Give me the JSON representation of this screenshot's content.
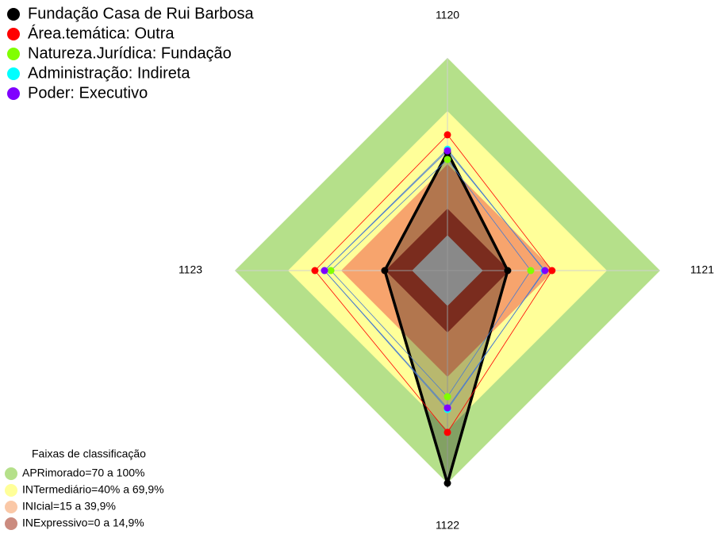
{
  "chart_data": {
    "type": "radar",
    "categories": [
      "1120",
      "1121",
      "1122",
      "1123"
    ],
    "ylim": [
      -20,
      100
    ],
    "series": [
      {
        "name": "Fundação Casa de Rui Barbosa",
        "color": "#000000",
        "values": [
          46.7,
          14,
          100,
          15.4
        ]
      },
      {
        "name": "Área.temática: Outra",
        "color": "#ff0000",
        "values": [
          56.6,
          39,
          71.3,
          54.8
        ]
      },
      {
        "name": "Natureza.Jurídica: Fundação",
        "color": "#80ff00",
        "values": [
          42.7,
          27,
          51.2,
          45.8
        ]
      },
      {
        "name": "Administração: Indireta",
        "color": "#00ffff",
        "values": [
          48.5,
          34.6,
          58.4,
          49.4
        ]
      },
      {
        "name": "Poder: Executivo",
        "color": "#8000ff",
        "values": [
          47.6,
          35,
          57.5,
          49.4
        ]
      }
    ],
    "bands_title": "Faixas de classificação",
    "bands": [
      {
        "label": "APRimorado=70 a 100%",
        "lower": 70,
        "color": "#b5e08a"
      },
      {
        "label": "INTermediário=40% a 69,9%",
        "lower": 40,
        "color": "#ffff99"
      },
      {
        "label": "INIcial=15 a 39,9%",
        "lower": 15,
        "color": "#f7a46d"
      },
      {
        "label": "INExpressivo=0 a 14,9%",
        "lower": 0,
        "color": "#a93d2a"
      }
    ],
    "center_color": "#bebebe"
  }
}
